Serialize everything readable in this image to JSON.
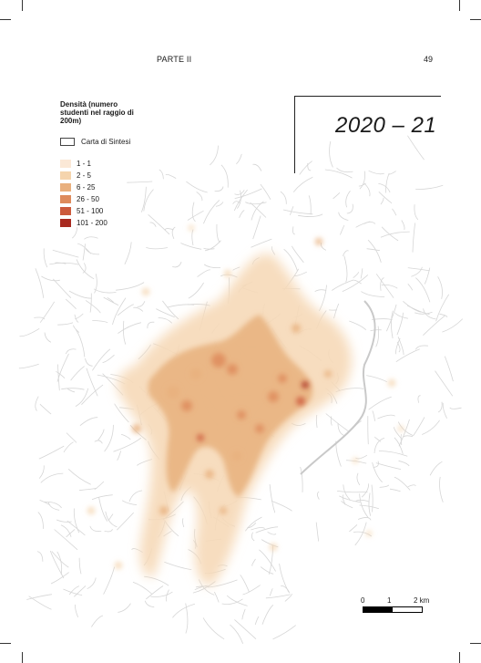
{
  "header": {
    "section": "PARTE II",
    "page_number": "49"
  },
  "title": {
    "year": "2020 – 21"
  },
  "legend": {
    "title": "Densità (numero studenti nel raggio di 200m)",
    "frame_label": "Carta di Sintesi",
    "classes": [
      {
        "label": "1 - 1",
        "color": "#fbe8d6"
      },
      {
        "label": "2 - 5",
        "color": "#f5d4ad"
      },
      {
        "label": "6 - 25",
        "color": "#e9b07e"
      },
      {
        "label": "26 - 50",
        "color": "#de8b5c"
      },
      {
        "label": "51 - 100",
        "color": "#cc5a3c"
      },
      {
        "label": "101 - 200",
        "color": "#a82a20"
      }
    ]
  },
  "scale": {
    "labels": [
      "0",
      "1",
      "2 km"
    ]
  },
  "colors": {
    "roads": "#d6d6d6",
    "background": "#ffffff"
  }
}
